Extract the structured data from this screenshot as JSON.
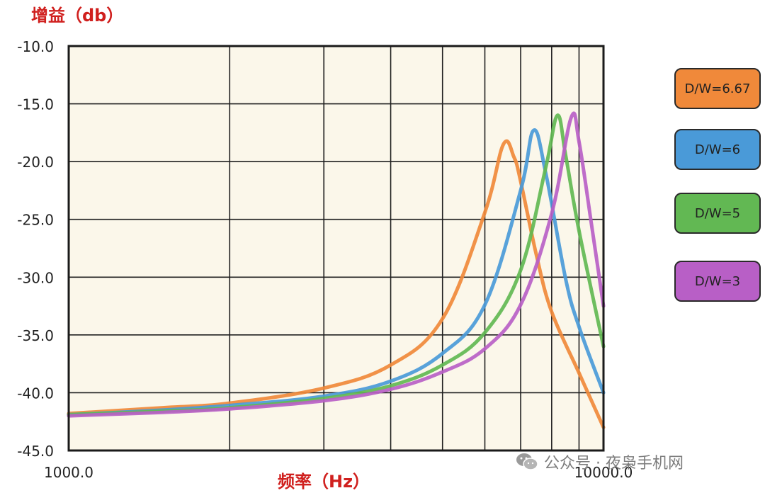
{
  "chart_data": {
    "type": "line",
    "ylabel": "增益（db）",
    "xlabel": "频率（Hz）",
    "x_scale": "log",
    "xlim": [
      1000,
      10000
    ],
    "ylim": [
      -45,
      -10
    ],
    "x_ticks": [
      "1000.0",
      "10000.0"
    ],
    "y_ticks": [
      "-10.0",
      "-15.0",
      "-20.0",
      "-25.0",
      "-30.0",
      "-35.0",
      "-40.0",
      "-45.0"
    ],
    "grid": true,
    "legend_placement": "right",
    "series": [
      {
        "name": "D/W=6.67",
        "color": "#f0893a",
        "x": [
          1000,
          1500,
          2000,
          3000,
          4000,
          5000,
          6000,
          6500,
          6800,
          7000,
          7500,
          8000,
          9000,
          10000
        ],
        "y": [
          -41.8,
          -41.3,
          -40.9,
          -39.6,
          -37.6,
          -33.6,
          -24.4,
          -18.5,
          -19.6,
          -21.7,
          -28.2,
          -33.0,
          -38.3,
          -43.0
        ]
      },
      {
        "name": "D/W=6",
        "color": "#4a9ad8",
        "x": [
          1000,
          1500,
          2000,
          3000,
          4000,
          5000,
          6000,
          7000,
          7400,
          7800,
          8500,
          9000,
          10000
        ],
        "y": [
          -41.9,
          -41.5,
          -41.1,
          -40.3,
          -39.0,
          -36.6,
          -32.4,
          -22.5,
          -17.3,
          -21.0,
          -30.2,
          -34.3,
          -40.0
        ]
      },
      {
        "name": "D/W=5",
        "color": "#62b853",
        "x": [
          1000,
          1500,
          2000,
          3000,
          4000,
          5000,
          6000,
          7000,
          7800,
          8200,
          8500,
          9000,
          10000
        ],
        "y": [
          -41.9,
          -41.6,
          -41.3,
          -40.5,
          -39.4,
          -37.6,
          -34.8,
          -29.4,
          -20.5,
          -16.0,
          -19.5,
          -26.0,
          -36.0
        ]
      },
      {
        "name": "D/W=3",
        "color": "#b85fc6",
        "x": [
          1000,
          1500,
          2000,
          3000,
          4000,
          5000,
          6000,
          7000,
          8000,
          8700,
          9000,
          9500,
          10000
        ],
        "y": [
          -42.0,
          -41.7,
          -41.4,
          -40.7,
          -39.7,
          -38.2,
          -36.2,
          -32.4,
          -24.5,
          -16.2,
          -18.3,
          -25.5,
          -32.5
        ]
      }
    ]
  },
  "legend_colors": [
    "#f0893a",
    "#4a9ad8",
    "#62b853",
    "#b85fc6"
  ],
  "watermark": {
    "text": "公众号 · 夜枭手机网",
    "icon": "wechat-icon"
  }
}
